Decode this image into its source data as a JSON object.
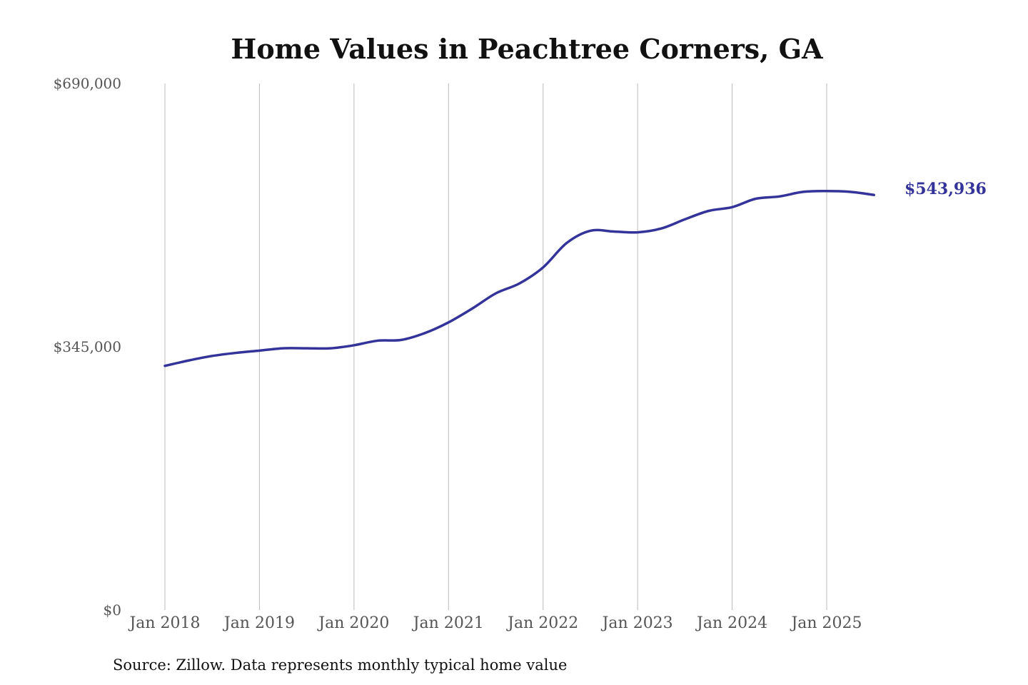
{
  "chart_data": {
    "type": "line",
    "title": "Home Values in Peachtree Corners, GA",
    "xlabel": "",
    "ylabel": "",
    "ylim": [
      0,
      690000
    ],
    "y_ticks": [
      {
        "value": 0,
        "label": "$0"
      },
      {
        "value": 345000,
        "label": "$345,000"
      },
      {
        "value": 690000,
        "label": "$690,000"
      }
    ],
    "x_ticks": [
      {
        "value": "2018-01",
        "label": "Jan 2018"
      },
      {
        "value": "2019-01",
        "label": "Jan 2019"
      },
      {
        "value": "2020-01",
        "label": "Jan 2020"
      },
      {
        "value": "2021-01",
        "label": "Jan 2021"
      },
      {
        "value": "2022-01",
        "label": "Jan 2022"
      },
      {
        "value": "2023-01",
        "label": "Jan 2023"
      },
      {
        "value": "2024-01",
        "label": "Jan 2024"
      },
      {
        "value": "2025-01",
        "label": "Jan 2025"
      }
    ],
    "grid": {
      "vertical": true,
      "horizontal": false
    },
    "series_color": "#333399",
    "gridline_color": "#bbbbbb",
    "series": [
      {
        "name": "",
        "x": [
          "2018-01",
          "2018-04",
          "2018-07",
          "2018-10",
          "2019-01",
          "2019-04",
          "2019-07",
          "2019-10",
          "2020-01",
          "2020-04",
          "2020-07",
          "2020-10",
          "2021-01",
          "2021-04",
          "2021-07",
          "2021-10",
          "2022-01",
          "2022-04",
          "2022-07",
          "2022-10",
          "2023-01",
          "2023-04",
          "2023-07",
          "2023-10",
          "2024-01",
          "2024-04",
          "2024-07",
          "2024-10",
          "2025-01",
          "2025-04",
          "2025-07"
        ],
        "values": [
          320000,
          327000,
          333000,
          337000,
          340000,
          343000,
          343000,
          343000,
          347000,
          353000,
          354000,
          363000,
          377000,
          395000,
          415000,
          428000,
          449000,
          481000,
          497000,
          496000,
          495000,
          500000,
          512000,
          523000,
          528000,
          539000,
          542000,
          548000,
          549000,
          548000,
          543936
        ]
      }
    ],
    "end_label": "$543,936",
    "source": "Source: Zillow. Data represents monthly typical home value"
  }
}
